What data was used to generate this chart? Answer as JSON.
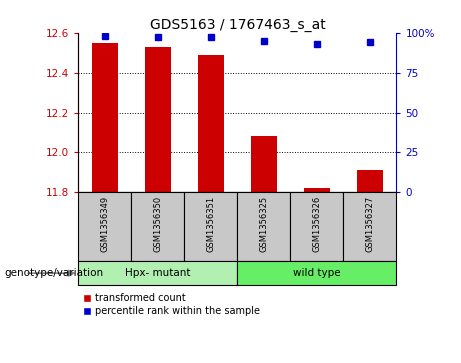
{
  "title": "GDS5163 / 1767463_s_at",
  "samples": [
    "GSM1356349",
    "GSM1356350",
    "GSM1356351",
    "GSM1356325",
    "GSM1356326",
    "GSM1356327"
  ],
  "red_values": [
    12.55,
    12.53,
    12.49,
    12.08,
    11.82,
    11.91
  ],
  "blue_values": [
    98,
    97,
    97,
    95,
    93,
    94
  ],
  "ylim_left": [
    11.8,
    12.6
  ],
  "ylim_right": [
    0,
    100
  ],
  "yticks_left": [
    11.8,
    12.0,
    12.2,
    12.4,
    12.6
  ],
  "yticks_right": [
    0,
    25,
    50,
    75,
    100
  ],
  "group_info": [
    {
      "label": "Hpx- mutant",
      "start": 0,
      "end": 2,
      "color": "#b2f0b2"
    },
    {
      "label": "wild type",
      "start": 3,
      "end": 5,
      "color": "#66ee66"
    }
  ],
  "genotype_label": "genotype/variation",
  "legend_red": "transformed count",
  "legend_blue": "percentile rank within the sample",
  "bar_color": "#cc0000",
  "dot_color": "#0000cc",
  "bar_width": 0.5,
  "baseline": 11.8,
  "bg_color": "#ffffff",
  "tick_color_left": "#cc0000",
  "tick_color_right": "#0000cc",
  "label_box_color": "#c8c8c8",
  "grid_lines": [
    12.0,
    12.2,
    12.4
  ]
}
